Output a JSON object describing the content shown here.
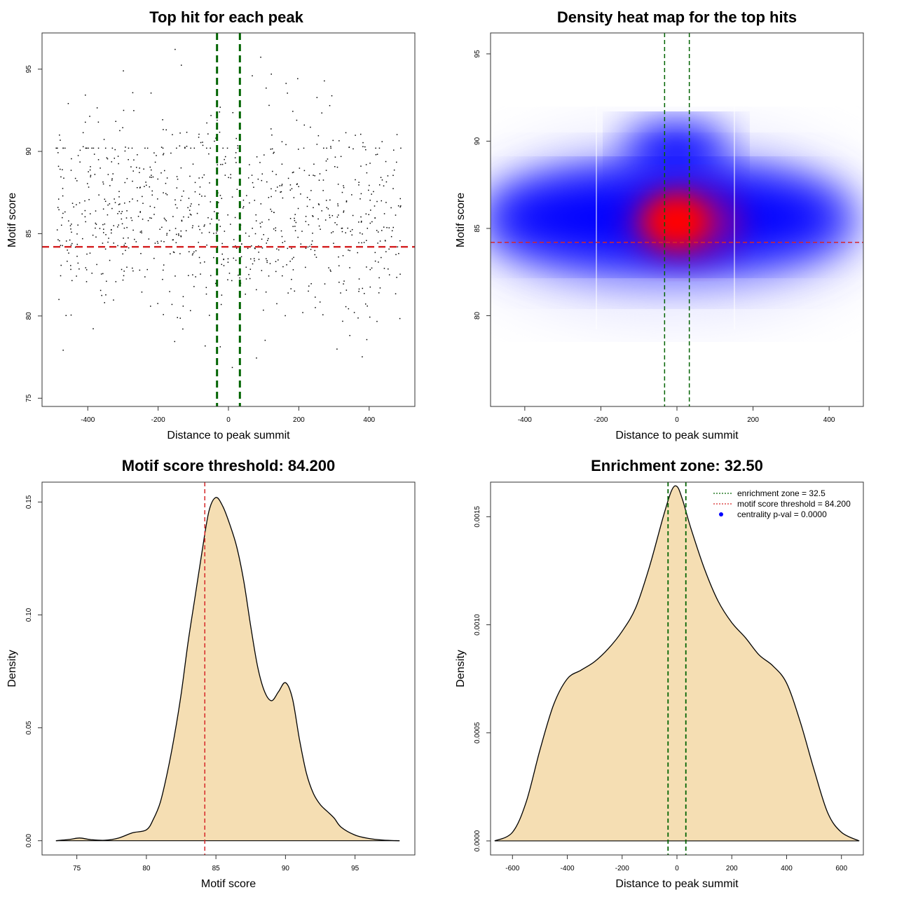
{
  "chart_data": [
    {
      "type": "scatter",
      "title": "Top hit for each peak",
      "xlabel": "Distance to peak summit",
      "ylabel": "Motif score",
      "xlim": [
        -530,
        530
      ],
      "ylim": [
        74.5,
        97.2
      ],
      "xticks": [
        -400,
        -200,
        0,
        200,
        400
      ],
      "yticks": [
        75,
        80,
        85,
        90,
        95
      ],
      "point_count": 900,
      "vlines": [
        -32.5,
        32.5
      ],
      "hline": 84.2,
      "colors": {
        "points": "#000000",
        "vlines": "#006400",
        "hline": "#d62728"
      }
    },
    {
      "type": "heatmap",
      "title": "Density heat map for the top hits",
      "xlabel": "Distance to peak summit",
      "ylabel": "Motif score",
      "xlim": [
        -490,
        490
      ],
      "ylim": [
        74.8,
        96.2
      ],
      "xticks": [
        -400,
        -200,
        0,
        200,
        400
      ],
      "yticks": [
        80,
        85,
        90,
        95
      ],
      "density_peak": {
        "x": 15,
        "y": 85.5
      },
      "vlines": [
        -32.5,
        32.5
      ],
      "hline": 84.2,
      "colors": {
        "low": "#ffffff",
        "mid": "#0000ff",
        "high": "#ff0000",
        "vlines": "#006400",
        "hline": "#d62728"
      }
    },
    {
      "type": "area",
      "title": "Motif score threshold: 84.200",
      "xlabel": "Motif score",
      "ylabel": "Density",
      "xlim": [
        72.5,
        99.3
      ],
      "ylim": [
        -0.0063,
        0.1588
      ],
      "xticks": [
        75,
        80,
        85,
        90,
        95
      ],
      "ytick_labels": [
        "0.00",
        "0.05",
        "0.10",
        "0.15"
      ],
      "ytick_values": [
        0,
        0.05,
        0.1,
        0.15
      ],
      "x": [
        73.5,
        74.5,
        75.2,
        76,
        77,
        78,
        79,
        80,
        80.5,
        81,
        81.5,
        82,
        82.5,
        83,
        83.5,
        84,
        84.5,
        85,
        85.5,
        86,
        86.5,
        87,
        87.5,
        88,
        88.5,
        89,
        89.5,
        90,
        90.5,
        91,
        91.5,
        92,
        92.5,
        93,
        93.5,
        94,
        95,
        96,
        97,
        98.2
      ],
      "y": [
        0.0,
        0.0006,
        0.0012,
        0.0005,
        0.0002,
        0.0012,
        0.0035,
        0.0048,
        0.0095,
        0.017,
        0.03,
        0.046,
        0.065,
        0.088,
        0.108,
        0.128,
        0.146,
        0.152,
        0.148,
        0.14,
        0.13,
        0.115,
        0.095,
        0.077,
        0.066,
        0.062,
        0.066,
        0.07,
        0.063,
        0.045,
        0.03,
        0.021,
        0.016,
        0.013,
        0.01,
        0.006,
        0.0025,
        0.001,
        0.0003,
        0.0
      ],
      "vline": 84.2,
      "colors": {
        "fill": "#f5deb3",
        "line": "#000000",
        "vline": "#d62728"
      }
    },
    {
      "type": "area",
      "title": "Enrichment zone: 32.50",
      "xlabel": "Distance to peak summit",
      "ylabel": "Density",
      "xlim": [
        -680,
        680
      ],
      "ylim": [
        -6.5e-05,
        0.00166
      ],
      "xticks": [
        -600,
        -400,
        -200,
        0,
        200,
        400,
        600
      ],
      "ytick_labels": [
        "0.0000",
        "0.0005",
        "0.0010",
        "0.0015"
      ],
      "ytick_values": [
        0,
        0.0005,
        0.001,
        0.0015
      ],
      "x": [
        -665,
        -600,
        -550,
        -500,
        -450,
        -400,
        -350,
        -300,
        -250,
        -200,
        -150,
        -100,
        -50,
        -20,
        0,
        20,
        50,
        100,
        150,
        200,
        250,
        300,
        350,
        400,
        450,
        500,
        550,
        600,
        665
      ],
      "y": [
        0.0,
        4e-05,
        0.00018,
        0.00042,
        0.00063,
        0.00075,
        0.00079,
        0.00083,
        0.00089,
        0.00097,
        0.00108,
        0.00127,
        0.0015,
        0.00162,
        0.00164,
        0.00158,
        0.00145,
        0.00126,
        0.00111,
        0.00101,
        0.00094,
        0.00086,
        0.00081,
        0.00073,
        0.00055,
        0.00033,
        0.00013,
        4e-05,
        0.0
      ],
      "vlines": [
        -32.5,
        32.5
      ],
      "legend_position": "top-right",
      "legend": [
        {
          "label": "enrichment zone = 32.5",
          "type": "dotted-line",
          "color": "#006400"
        },
        {
          "label": "motif score threshold = 84.200",
          "type": "dotted-line",
          "color": "#d62728"
        },
        {
          "label": "centrality p-val = 0.0000",
          "type": "point",
          "color": "#0000ff"
        }
      ],
      "colors": {
        "fill": "#f5deb3",
        "line": "#000000",
        "vlines": "#006400"
      }
    }
  ]
}
